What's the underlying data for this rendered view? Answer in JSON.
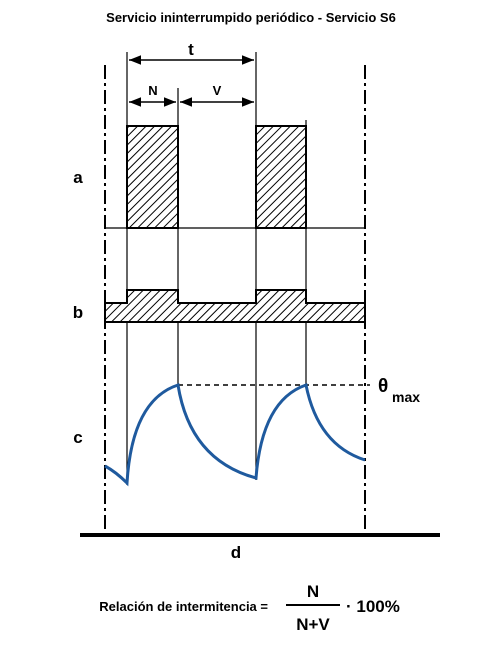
{
  "title": "Servicio ininterrumpido periódico - Servicio S6",
  "labels": {
    "t": "t",
    "N": "N",
    "V": "V",
    "a": "a",
    "b": "b",
    "c": "c",
    "d": "d"
  },
  "theta": {
    "symbol": "θ",
    "subscript": "max"
  },
  "formula": {
    "prefix": "Relación de intermitencia =",
    "numerator": "N",
    "denominator": "N+V",
    "suffix": "· 100%"
  }
}
